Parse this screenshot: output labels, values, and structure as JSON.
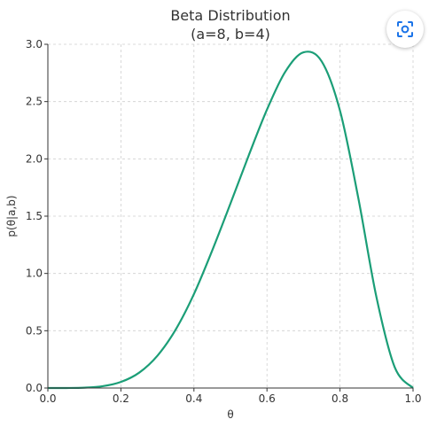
{
  "lens_button": {
    "icon": "lens-scan-icon",
    "color": "#1a73e8"
  },
  "chart_data": {
    "type": "line",
    "title": "Beta Distribution",
    "subtitle": "(a=8, b=4)",
    "xlabel": "θ",
    "ylabel": "p(θ|a,b)",
    "xlim": [
      0,
      1
    ],
    "ylim": [
      0,
      3
    ],
    "xticks": [
      "0.0",
      "0.2",
      "0.4",
      "0.6",
      "0.8",
      "1.0"
    ],
    "yticks": [
      "0.0",
      "0.5",
      "1.0",
      "1.5",
      "2.0",
      "2.5",
      "3.0"
    ],
    "grid": true,
    "color": "#1b9e77",
    "series": [
      {
        "x": [
          0,
          0.05,
          0.1,
          0.15,
          0.2,
          0.25,
          0.3,
          0.35,
          0.4,
          0.45,
          0.5,
          0.55,
          0.6,
          0.65,
          0.7,
          0.75,
          0.8,
          0.85,
          0.9,
          0.95,
          1.0
        ],
        "y": [
          0,
          0.0001,
          0.003,
          0.016,
          0.053,
          0.134,
          0.282,
          0.51,
          0.82,
          1.2,
          1.61,
          2.03,
          2.43,
          2.76,
          2.93,
          2.85,
          2.42,
          1.66,
          0.79,
          0.18,
          0
        ]
      }
    ]
  }
}
